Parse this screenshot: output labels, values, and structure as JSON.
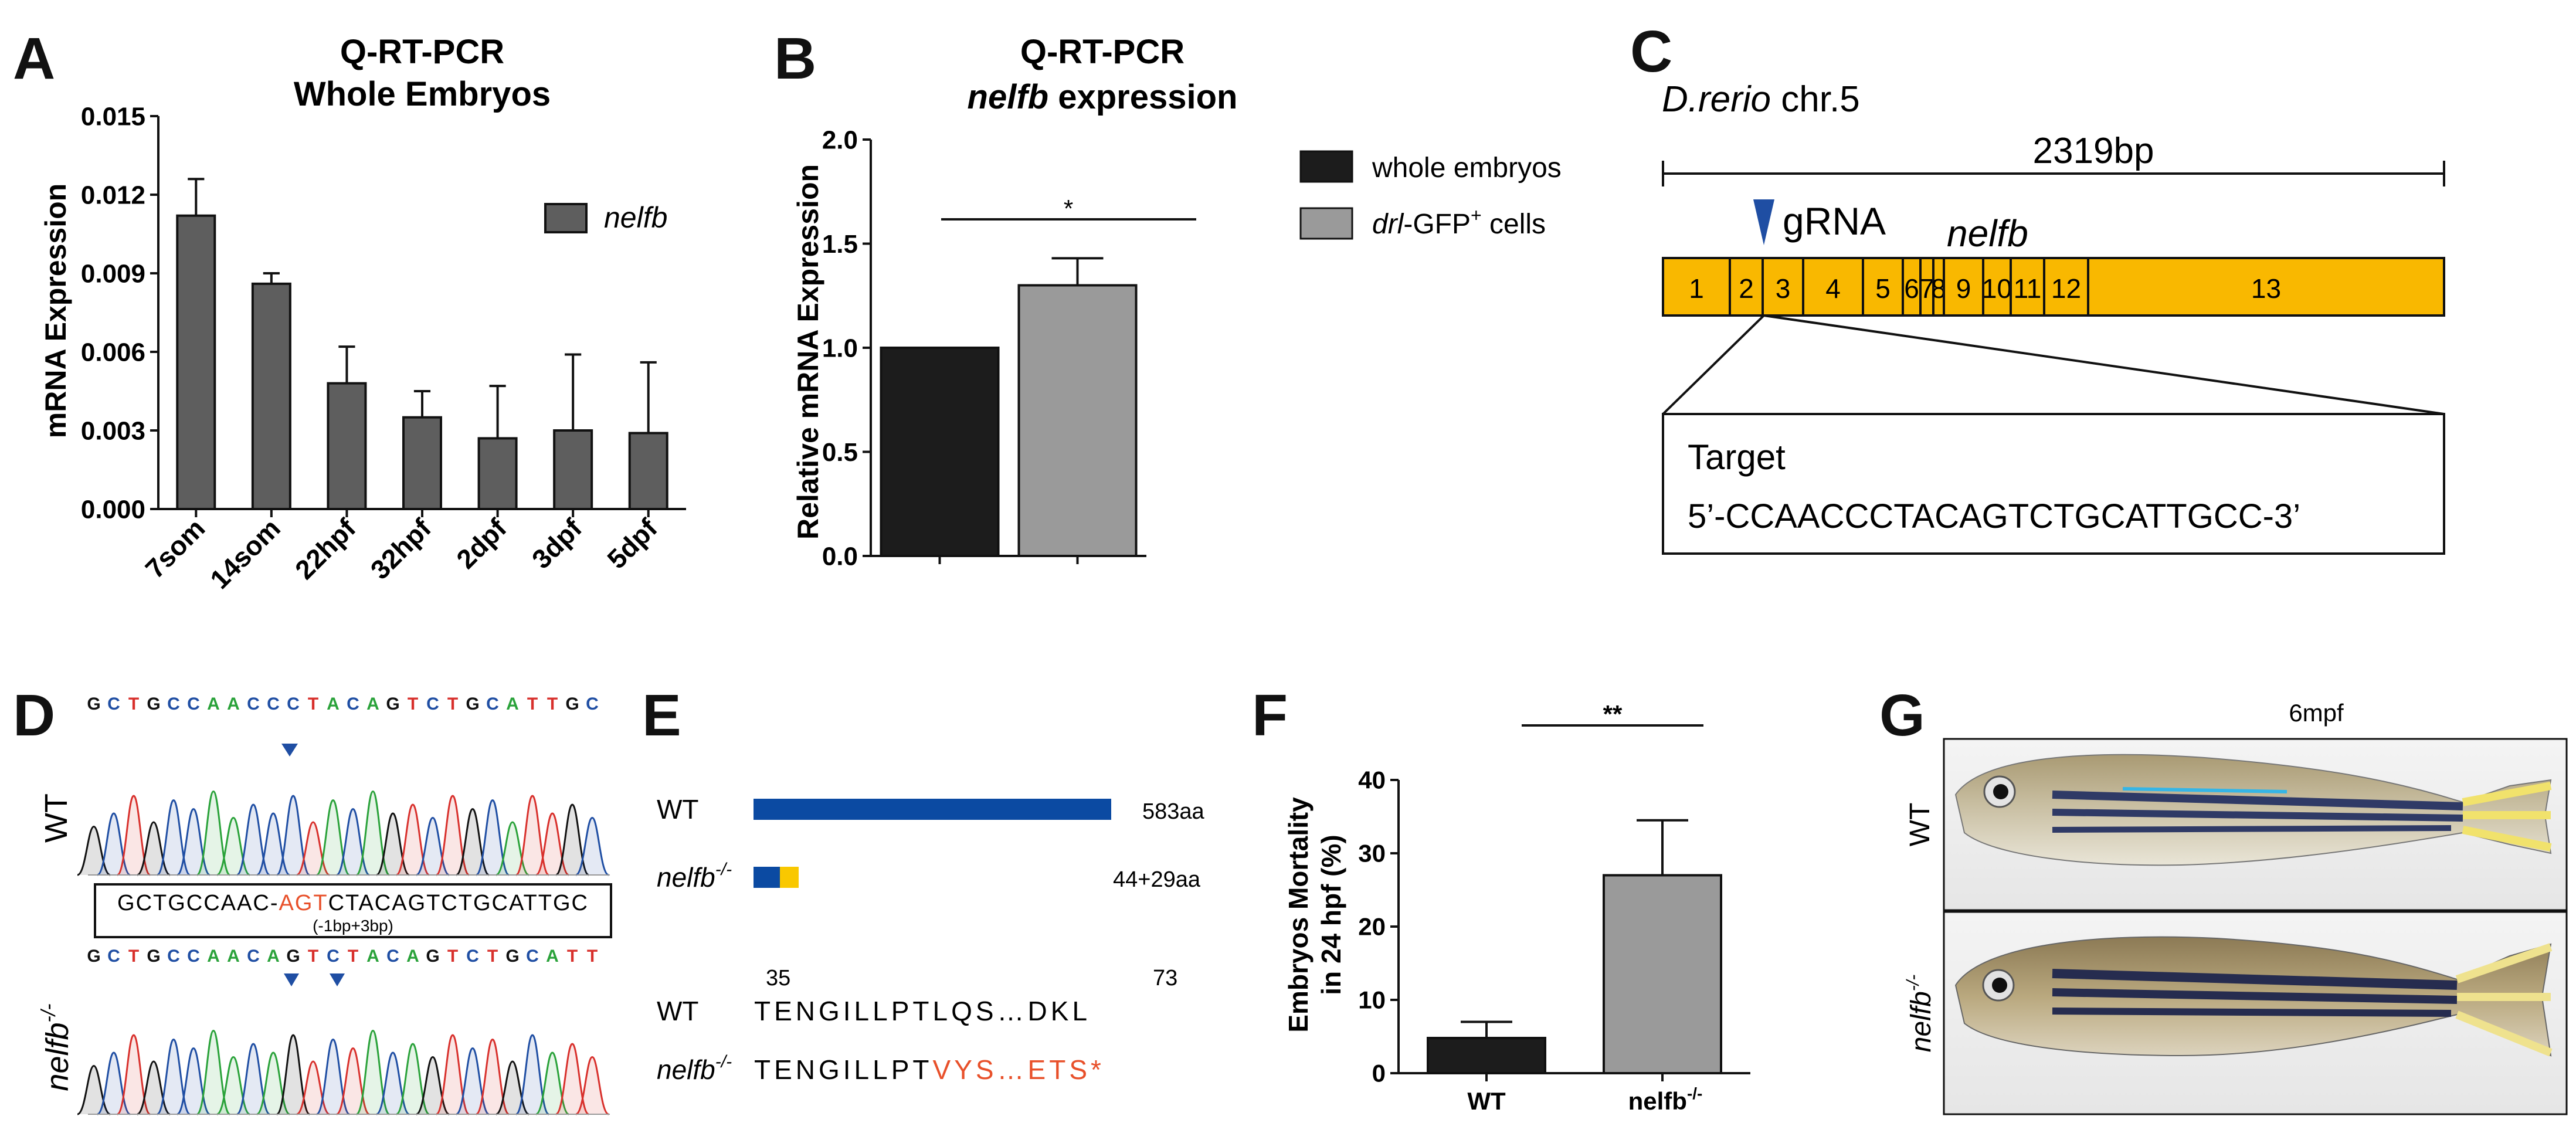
{
  "panels": {
    "A": {
      "letter": "A",
      "title_line1": "Q-RT-PCR",
      "title_line2": "Whole Embryos",
      "ylabel": "mRNA Expression",
      "legend": "nelfb",
      "yticks": [
        "0.000",
        "0.003",
        "0.006",
        "0.009",
        "0.012",
        "0.015"
      ]
    },
    "B": {
      "letter": "B",
      "title_line1": "Q-RT-PCR",
      "title_line2_italic": "nelfb",
      "title_line2_rest": " expression",
      "ylabel": "Relative mRNA Expression",
      "yticks": [
        "0.0",
        "0.5",
        "1.0",
        "1.5",
        "2.0"
      ],
      "significance": "*",
      "legend_1": "whole embryos",
      "legend_2_italic": "drl",
      "legend_2_rest": "-GFP",
      "legend_2_sup": "+",
      "legend_2_end": " cells"
    },
    "C": {
      "letter": "C",
      "species_italic": "D.rerio",
      "chrom": " chr.5",
      "length": "2319bp",
      "grna": "gRNA",
      "gene": "nelfb",
      "exons": [
        "1",
        "2",
        "3",
        "4",
        "5",
        "6",
        "7",
        "8",
        "9",
        "10",
        "11",
        "12",
        "13"
      ],
      "target_label": "Target",
      "target_seq": "5’-CCAACCCTACAGTCTGCATTGCC-3’"
    },
    "D": {
      "letter": "D",
      "wt_label": "WT",
      "mut_label": "nelfb",
      "mut_sup": "-/-",
      "wt_bases": [
        "G",
        "C",
        "T",
        "G",
        "C",
        "C",
        "A",
        "A",
        "C",
        "C",
        "C",
        "T",
        "A",
        "C",
        "A",
        "G",
        "T",
        "C",
        "T",
        "G",
        "C",
        "A",
        "T",
        "T",
        "G",
        "C"
      ],
      "mut_bases": [
        "G",
        "C",
        "T",
        "G",
        "C",
        "C",
        "A",
        "A",
        "C",
        "A",
        "G",
        "T",
        "C",
        "T",
        "A",
        "C",
        "A",
        "G",
        "T",
        "C",
        "T",
        "G",
        "C",
        "A",
        "T",
        "T"
      ],
      "box_seq_a": "GCTGCCAAC-",
      "box_seq_red": "AGT",
      "box_seq_b": "CTACAGTCTGCATTGC",
      "box_note": "(-1bp+3bp)"
    },
    "E": {
      "letter": "E",
      "wt_label": "WT",
      "wt_len": "583aa",
      "mut_label": "nelfb",
      "mut_sup": "-/-",
      "mut_len": "44+29aa",
      "pos_start": "35",
      "pos_end": "73",
      "wt_seq": "TENGILLPTLQS…DKL",
      "mut_seq_black": "TENGILLPT",
      "mut_seq_red": "VYS…ETS*"
    },
    "F": {
      "letter": "F",
      "ylabel_1": "Embryos Mortality",
      "ylabel_2": "in 24 hpf (%)",
      "yticks": [
        "0",
        "10",
        "20",
        "30",
        "40"
      ],
      "significance": "**",
      "cat_wt": "WT",
      "cat_mut": "nelfb",
      "cat_mut_sup": "-/-"
    },
    "G": {
      "letter": "G",
      "title": "6mpf",
      "wt_label": "WT",
      "mut_label": "nelfb",
      "mut_sup": "-/-"
    }
  },
  "chart_data": [
    {
      "type": "bar",
      "panel": "A",
      "title": "Q-RT-PCR Whole Embryos",
      "ylabel": "mRNA Expression",
      "categories": [
        "7som",
        "14som",
        "22hpf",
        "32hpf",
        "2dpf",
        "3dpf",
        "5dpf"
      ],
      "series": [
        {
          "name": "nelfb",
          "values": [
            0.0112,
            0.0086,
            0.0048,
            0.0035,
            0.0027,
            0.003,
            0.0029
          ],
          "errors": [
            0.0014,
            0.0004,
            0.0014,
            0.001,
            0.002,
            0.0029,
            0.0027
          ]
        }
      ],
      "ylim": [
        0,
        0.015
      ],
      "color": "#5e5e5e"
    },
    {
      "type": "bar",
      "panel": "B",
      "title": "Q-RT-PCR nelfb expression",
      "ylabel": "Relative mRNA Expression",
      "categories": [
        "whole embryos",
        "drl-GFP+ cells"
      ],
      "values": [
        1.0,
        1.3
      ],
      "errors": [
        0.0,
        0.13
      ],
      "ylim": [
        0,
        2.0
      ],
      "colors": [
        "#1c1c1c",
        "#9a9a9a"
      ]
    },
    {
      "type": "bar",
      "panel": "F",
      "ylabel": "Embryos Mortality in 24 hpf (%)",
      "categories": [
        "WT",
        "nelfb-/-"
      ],
      "values": [
        4.8,
        27.0
      ],
      "errors": [
        2.2,
        7.5
      ],
      "ylim": [
        0,
        40
      ],
      "colors": [
        "#1c1c1c",
        "#9a9a9a"
      ]
    }
  ],
  "colors": {
    "exon_fill": "#f9b800",
    "gRNA_arrow": "#1f4ea3",
    "protein_blue": "#0b4aa2",
    "protein_yellow": "#f9c800",
    "mut_red": "#e8502a",
    "dark_bar": "#1c1c1c",
    "light_bar": "#9a9a9a",
    "grey_bar": "#5e5e5e"
  }
}
